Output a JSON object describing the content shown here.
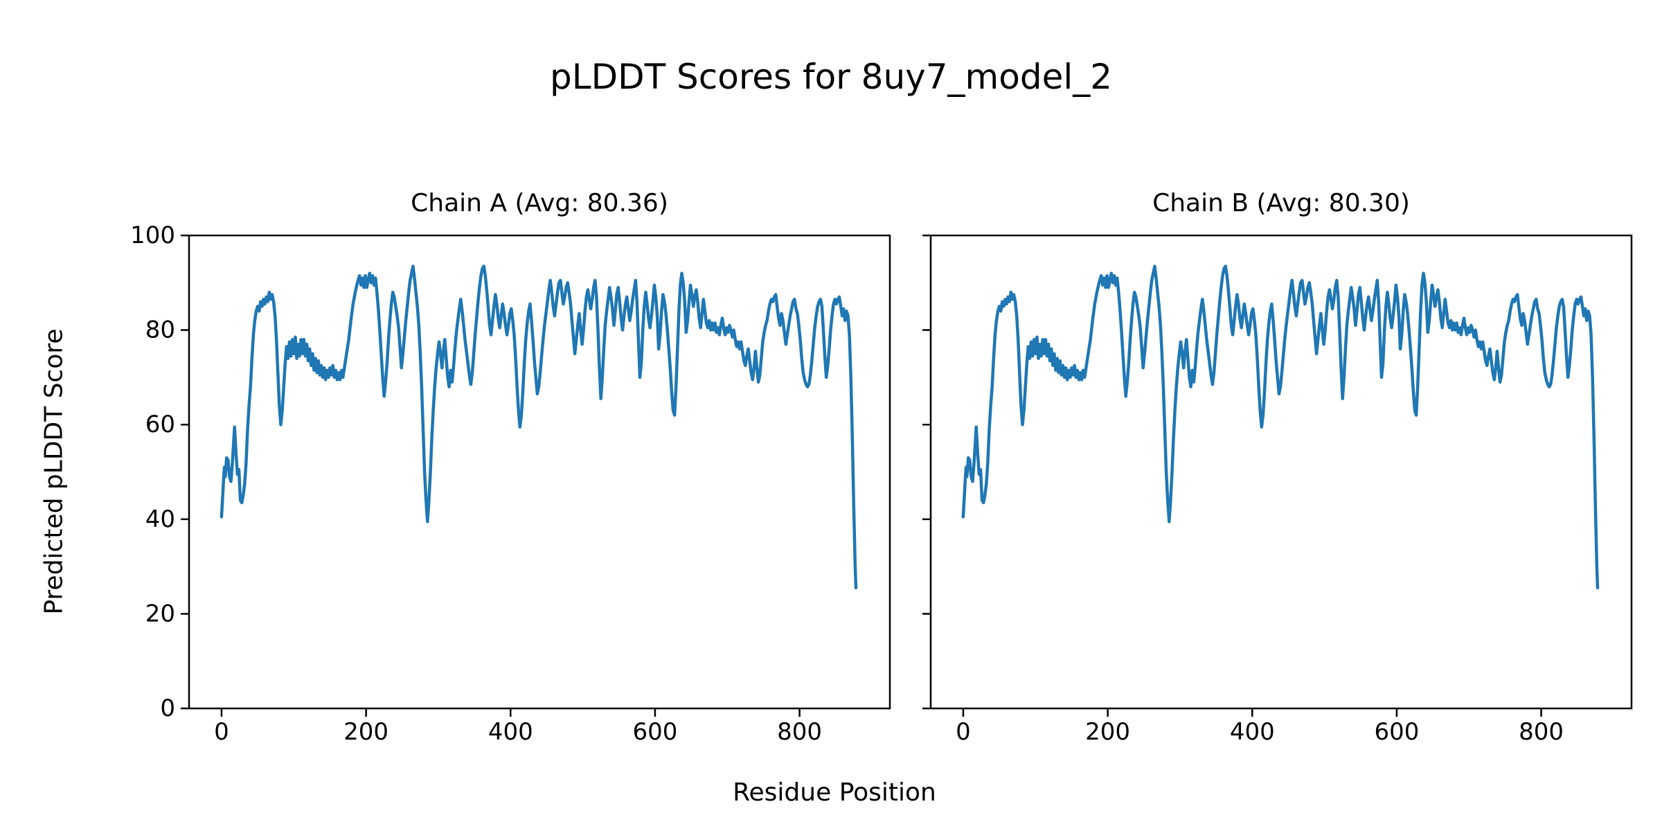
{
  "figure": {
    "suptitle": "pLDDT Scores for 8uy7_model_2",
    "xlabel": "Residue Position",
    "ylabel": "Predicted pLDDT Score"
  },
  "chart_data": {
    "type": "line",
    "title": "pLDDT Scores for 8uy7_model_2",
    "xlabel": "Residue Position",
    "ylabel": "Predicted pLDDT Score",
    "xlim": [
      -45,
      925
    ],
    "ylim": [
      0,
      100
    ],
    "xticks": [
      0,
      200,
      400,
      600,
      800
    ],
    "yticks": [
      0,
      20,
      40,
      60,
      80,
      100
    ],
    "grid": false,
    "legend": "none",
    "line_color": "#1f77b4",
    "axis_color": "#000000",
    "background": "#ffffff",
    "subplots": [
      {
        "chain": "A",
        "title": "Chain A (Avg: 80.36)",
        "avg_plddt": 80.36
      },
      {
        "chain": "B",
        "title": "Chain B (Avg: 80.30)",
        "avg_plddt": 80.3
      }
    ],
    "x_units": "residue index",
    "points": [
      [
        0,
        40.5
      ],
      [
        2,
        46
      ],
      [
        3,
        49
      ],
      [
        4,
        51
      ],
      [
        5,
        49
      ],
      [
        7,
        53
      ],
      [
        9,
        52.5
      ],
      [
        11,
        49
      ],
      [
        13,
        48
      ],
      [
        15,
        52
      ],
      [
        17,
        57
      ],
      [
        18,
        59.5
      ],
      [
        20,
        54
      ],
      [
        22,
        49.5
      ],
      [
        24,
        50.5
      ],
      [
        26,
        44
      ],
      [
        28,
        43.5
      ],
      [
        30,
        45
      ],
      [
        32,
        47.5
      ],
      [
        34,
        52
      ],
      [
        36,
        59
      ],
      [
        38,
        64
      ],
      [
        40,
        68
      ],
      [
        42,
        74
      ],
      [
        44,
        79
      ],
      [
        46,
        82
      ],
      [
        48,
        84
      ],
      [
        50,
        85
      ],
      [
        52,
        84
      ],
      [
        54,
        86
      ],
      [
        56,
        85
      ],
      [
        58,
        86.5
      ],
      [
        60,
        85.5
      ],
      [
        62,
        87
      ],
      [
        64,
        86
      ],
      [
        66,
        88
      ],
      [
        68,
        86.5
      ],
      [
        70,
        87.5
      ],
      [
        72,
        86
      ],
      [
        74,
        83
      ],
      [
        76,
        78
      ],
      [
        78,
        71
      ],
      [
        80,
        64
      ],
      [
        82,
        60
      ],
      [
        84,
        63
      ],
      [
        86,
        68
      ],
      [
        88,
        73
      ],
      [
        90,
        76.5
      ],
      [
        92,
        74
      ],
      [
        94,
        77.5
      ],
      [
        96,
        74.5
      ],
      [
        98,
        78
      ],
      [
        100,
        75
      ],
      [
        102,
        78.5
      ],
      [
        104,
        74
      ],
      [
        106,
        77
      ],
      [
        108,
        74.5
      ],
      [
        110,
        78
      ],
      [
        112,
        75
      ],
      [
        114,
        78
      ],
      [
        116,
        74.5
      ],
      [
        118,
        77
      ],
      [
        120,
        73.5
      ],
      [
        122,
        76
      ],
      [
        124,
        72.5
      ],
      [
        126,
        75
      ],
      [
        128,
        71.5
      ],
      [
        130,
        74
      ],
      [
        132,
        71
      ],
      [
        134,
        73.5
      ],
      [
        136,
        70.5
      ],
      [
        138,
        72.5
      ],
      [
        140,
        70
      ],
      [
        142,
        72
      ],
      [
        144,
        69.5
      ],
      [
        146,
        71.5
      ],
      [
        148,
        70
      ],
      [
        150,
        72
      ],
      [
        152,
        70.5
      ],
      [
        154,
        72.5
      ],
      [
        156,
        70
      ],
      [
        158,
        71.5
      ],
      [
        160,
        69.5
      ],
      [
        162,
        71
      ],
      [
        164,
        69.5
      ],
      [
        166,
        71.5
      ],
      [
        168,
        70
      ],
      [
        170,
        72
      ],
      [
        173,
        75
      ],
      [
        176,
        78
      ],
      [
        179,
        82
      ],
      [
        182,
        85.5
      ],
      [
        185,
        88
      ],
      [
        188,
        90
      ],
      [
        191,
        91.5
      ],
      [
        193,
        89.5
      ],
      [
        195,
        91
      ],
      [
        197,
        89
      ],
      [
        199,
        91.5
      ],
      [
        201,
        89
      ],
      [
        203,
        90.5
      ],
      [
        205,
        92
      ],
      [
        207,
        90
      ],
      [
        209,
        91.5
      ],
      [
        211,
        89.5
      ],
      [
        213,
        91
      ],
      [
        215,
        88
      ],
      [
        217,
        84.5
      ],
      [
        219,
        80
      ],
      [
        221,
        75
      ],
      [
        223,
        70
      ],
      [
        225,
        66
      ],
      [
        227,
        69
      ],
      [
        229,
        73
      ],
      [
        231,
        78
      ],
      [
        233,
        82
      ],
      [
        235,
        85.5
      ],
      [
        237,
        88
      ],
      [
        239,
        87
      ],
      [
        241,
        85
      ],
      [
        243,
        83
      ],
      [
        245,
        80.5
      ],
      [
        247,
        76.5
      ],
      [
        249,
        72
      ],
      [
        251,
        75
      ],
      [
        253,
        78.5
      ],
      [
        255,
        82
      ],
      [
        257,
        85
      ],
      [
        259,
        88
      ],
      [
        261,
        90.5
      ],
      [
        263,
        92
      ],
      [
        265,
        93.5
      ],
      [
        267,
        91
      ],
      [
        269,
        88
      ],
      [
        271,
        85
      ],
      [
        273,
        81
      ],
      [
        275,
        75
      ],
      [
        277,
        68
      ],
      [
        279,
        59
      ],
      [
        281,
        50
      ],
      [
        283,
        44
      ],
      [
        285,
        39.5
      ],
      [
        287,
        44
      ],
      [
        289,
        50
      ],
      [
        291,
        57
      ],
      [
        293,
        63
      ],
      [
        295,
        68
      ],
      [
        297,
        72
      ],
      [
        299,
        75
      ],
      [
        301,
        77.5
      ],
      [
        303,
        75
      ],
      [
        305,
        72
      ],
      [
        307,
        75.5
      ],
      [
        309,
        78
      ],
      [
        311,
        74
      ],
      [
        313,
        70
      ],
      [
        315,
        68
      ],
      [
        317,
        71.5
      ],
      [
        319,
        69
      ],
      [
        321,
        72
      ],
      [
        323,
        76
      ],
      [
        325,
        79.5
      ],
      [
        327,
        82
      ],
      [
        329,
        84.5
      ],
      [
        331,
        86.5
      ],
      [
        333,
        84
      ],
      [
        335,
        81
      ],
      [
        337,
        78
      ],
      [
        339,
        75.5
      ],
      [
        341,
        73
      ],
      [
        343,
        70.5
      ],
      [
        345,
        68.5
      ],
      [
        347,
        71
      ],
      [
        349,
        75
      ],
      [
        351,
        79
      ],
      [
        353,
        82.5
      ],
      [
        355,
        86
      ],
      [
        357,
        89
      ],
      [
        359,
        91.5
      ],
      [
        361,
        93
      ],
      [
        363,
        93.5
      ],
      [
        365,
        91.5
      ],
      [
        367,
        88.5
      ],
      [
        369,
        85
      ],
      [
        371,
        81
      ],
      [
        373,
        79
      ],
      [
        375,
        82
      ],
      [
        377,
        85
      ],
      [
        379,
        87.5
      ],
      [
        381,
        85.5
      ],
      [
        383,
        82.5
      ],
      [
        385,
        80.5
      ],
      [
        387,
        83
      ],
      [
        389,
        85.5
      ],
      [
        391,
        83.5
      ],
      [
        393,
        81
      ],
      [
        395,
        79
      ],
      [
        397,
        81
      ],
      [
        399,
        83.5
      ],
      [
        401,
        84.5
      ],
      [
        403,
        82
      ],
      [
        405,
        79
      ],
      [
        407,
        74
      ],
      [
        409,
        68
      ],
      [
        411,
        63
      ],
      [
        413,
        59.5
      ],
      [
        415,
        62
      ],
      [
        417,
        67
      ],
      [
        419,
        73
      ],
      [
        421,
        78
      ],
      [
        423,
        81.5
      ],
      [
        425,
        84
      ],
      [
        427,
        85.5
      ],
      [
        429,
        82
      ],
      [
        431,
        78
      ],
      [
        433,
        73.5
      ],
      [
        435,
        70
      ],
      [
        437,
        66.5
      ],
      [
        439,
        68
      ],
      [
        441,
        71
      ],
      [
        443,
        74.5
      ],
      [
        445,
        78
      ],
      [
        447,
        81
      ],
      [
        449,
        83.5
      ],
      [
        451,
        86
      ],
      [
        453,
        88.5
      ],
      [
        455,
        90.5
      ],
      [
        457,
        88
      ],
      [
        459,
        85
      ],
      [
        461,
        83
      ],
      [
        463,
        85.5
      ],
      [
        465,
        88
      ],
      [
        467,
        90
      ],
      [
        469,
        90.5
      ],
      [
        471,
        88
      ],
      [
        473,
        85.5
      ],
      [
        475,
        87
      ],
      [
        477,
        89
      ],
      [
        479,
        90
      ],
      [
        481,
        88
      ],
      [
        483,
        85.5
      ],
      [
        485,
        82
      ],
      [
        487,
        78.5
      ],
      [
        489,
        75
      ],
      [
        491,
        78
      ],
      [
        493,
        81
      ],
      [
        495,
        83.5
      ],
      [
        497,
        80
      ],
      [
        499,
        77
      ],
      [
        501,
        80
      ],
      [
        503,
        84
      ],
      [
        505,
        87
      ],
      [
        507,
        88.5
      ],
      [
        509,
        86.5
      ],
      [
        511,
        84.5
      ],
      [
        513,
        86.5
      ],
      [
        515,
        89
      ],
      [
        517,
        90.5
      ],
      [
        519,
        87
      ],
      [
        521,
        80
      ],
      [
        523,
        72
      ],
      [
        525,
        65.5
      ],
      [
        527,
        70
      ],
      [
        529,
        76
      ],
      [
        531,
        81
      ],
      [
        533,
        84
      ],
      [
        535,
        86.5
      ],
      [
        537,
        89
      ],
      [
        539,
        87
      ],
      [
        541,
        84.5
      ],
      [
        543,
        81
      ],
      [
        545,
        84
      ],
      [
        547,
        87.5
      ],
      [
        549,
        89
      ],
      [
        551,
        86
      ],
      [
        553,
        82.5
      ],
      [
        555,
        80
      ],
      [
        557,
        83
      ],
      [
        559,
        85.5
      ],
      [
        561,
        87
      ],
      [
        563,
        84.5
      ],
      [
        565,
        82
      ],
      [
        567,
        84
      ],
      [
        569,
        86.5
      ],
      [
        571,
        88.5
      ],
      [
        573,
        90.5
      ],
      [
        575,
        86
      ],
      [
        577,
        78
      ],
      [
        579,
        70
      ],
      [
        581,
        73
      ],
      [
        583,
        80
      ],
      [
        585,
        85
      ],
      [
        587,
        88
      ],
      [
        589,
        85.5
      ],
      [
        591,
        82.5
      ],
      [
        593,
        80.5
      ],
      [
        595,
        83
      ],
      [
        597,
        86
      ],
      [
        599,
        89.5
      ],
      [
        601,
        87
      ],
      [
        603,
        83
      ],
      [
        605,
        76
      ],
      [
        607,
        79
      ],
      [
        609,
        84
      ],
      [
        611,
        87.5
      ],
      [
        613,
        86
      ],
      [
        615,
        83.5
      ],
      [
        617,
        80
      ],
      [
        619,
        76
      ],
      [
        621,
        72
      ],
      [
        623,
        67
      ],
      [
        625,
        63
      ],
      [
        627,
        62
      ],
      [
        629,
        68
      ],
      [
        631,
        76
      ],
      [
        633,
        84
      ],
      [
        635,
        89.5
      ],
      [
        637,
        92
      ],
      [
        639,
        90
      ],
      [
        641,
        86
      ],
      [
        643,
        79.5
      ],
      [
        645,
        82
      ],
      [
        647,
        86
      ],
      [
        649,
        89.5
      ],
      [
        651,
        87.5
      ],
      [
        653,
        85
      ],
      [
        655,
        87
      ],
      [
        657,
        88.5
      ],
      [
        659,
        86
      ],
      [
        661,
        82.5
      ],
      [
        663,
        80.5
      ],
      [
        665,
        83.5
      ],
      [
        667,
        86.5
      ],
      [
        669,
        84
      ],
      [
        671,
        81.5
      ],
      [
        673,
        80.5
      ],
      [
        675,
        82
      ],
      [
        677,
        80
      ],
      [
        679,
        81.5
      ],
      [
        681,
        80
      ],
      [
        683,
        81.5
      ],
      [
        685,
        79.5
      ],
      [
        687,
        80.5
      ],
      [
        689,
        79
      ],
      [
        691,
        81
      ],
      [
        693,
        82.5
      ],
      [
        695,
        80.5
      ],
      [
        697,
        79
      ],
      [
        699,
        80.5
      ],
      [
        701,
        79.5
      ],
      [
        703,
        81
      ],
      [
        705,
        80
      ],
      [
        707,
        78.5
      ],
      [
        709,
        80
      ],
      [
        711,
        78
      ],
      [
        713,
        76.5
      ],
      [
        715,
        77.5
      ],
      [
        717,
        76
      ],
      [
        719,
        77.5
      ],
      [
        721,
        75.5
      ],
      [
        723,
        73.5
      ],
      [
        725,
        72.5
      ],
      [
        727,
        74.5
      ],
      [
        729,
        76
      ],
      [
        731,
        73.5
      ],
      [
        733,
        71
      ],
      [
        735,
        69.5
      ],
      [
        737,
        72
      ],
      [
        739,
        75.5
      ],
      [
        741,
        72
      ],
      [
        743,
        69
      ],
      [
        745,
        70.5
      ],
      [
        747,
        74
      ],
      [
        749,
        77.5
      ],
      [
        751,
        79.5
      ],
      [
        753,
        81
      ],
      [
        755,
        82
      ],
      [
        757,
        84
      ],
      [
        759,
        85.5
      ],
      [
        761,
        86.5
      ],
      [
        763,
        86
      ],
      [
        765,
        87
      ],
      [
        767,
        87.5
      ],
      [
        769,
        85
      ],
      [
        771,
        82.5
      ],
      [
        773,
        81
      ],
      [
        775,
        83.5
      ],
      [
        777,
        82
      ],
      [
        779,
        79.5
      ],
      [
        781,
        77
      ],
      [
        783,
        79
      ],
      [
        785,
        81
      ],
      [
        787,
        83
      ],
      [
        789,
        84.5
      ],
      [
        791,
        86
      ],
      [
        793,
        86.5
      ],
      [
        795,
        84.5
      ],
      [
        797,
        83.5
      ],
      [
        799,
        81
      ],
      [
        801,
        78
      ],
      [
        803,
        74
      ],
      [
        805,
        71
      ],
      [
        807,
        69.5
      ],
      [
        809,
        68.5
      ],
      [
        811,
        68
      ],
      [
        813,
        68.5
      ],
      [
        815,
        70.5
      ],
      [
        817,
        73.5
      ],
      [
        819,
        77
      ],
      [
        821,
        80.5
      ],
      [
        823,
        83
      ],
      [
        825,
        85
      ],
      [
        827,
        86
      ],
      [
        829,
        86.5
      ],
      [
        831,
        85
      ],
      [
        833,
        80
      ],
      [
        835,
        74.5
      ],
      [
        837,
        70
      ],
      [
        839,
        72.5
      ],
      [
        841,
        76
      ],
      [
        843,
        80
      ],
      [
        845,
        83
      ],
      [
        847,
        85.5
      ],
      [
        849,
        86.5
      ],
      [
        851,
        85.5
      ],
      [
        853,
        86.5
      ],
      [
        855,
        87
      ],
      [
        857,
        85
      ],
      [
        859,
        83
      ],
      [
        861,
        84.5
      ],
      [
        863,
        82
      ],
      [
        865,
        84
      ],
      [
        867,
        83
      ],
      [
        869,
        79
      ],
      [
        871,
        70
      ],
      [
        873,
        58
      ],
      [
        875,
        43
      ],
      [
        877,
        30
      ],
      [
        878,
        25.5
      ]
    ]
  }
}
